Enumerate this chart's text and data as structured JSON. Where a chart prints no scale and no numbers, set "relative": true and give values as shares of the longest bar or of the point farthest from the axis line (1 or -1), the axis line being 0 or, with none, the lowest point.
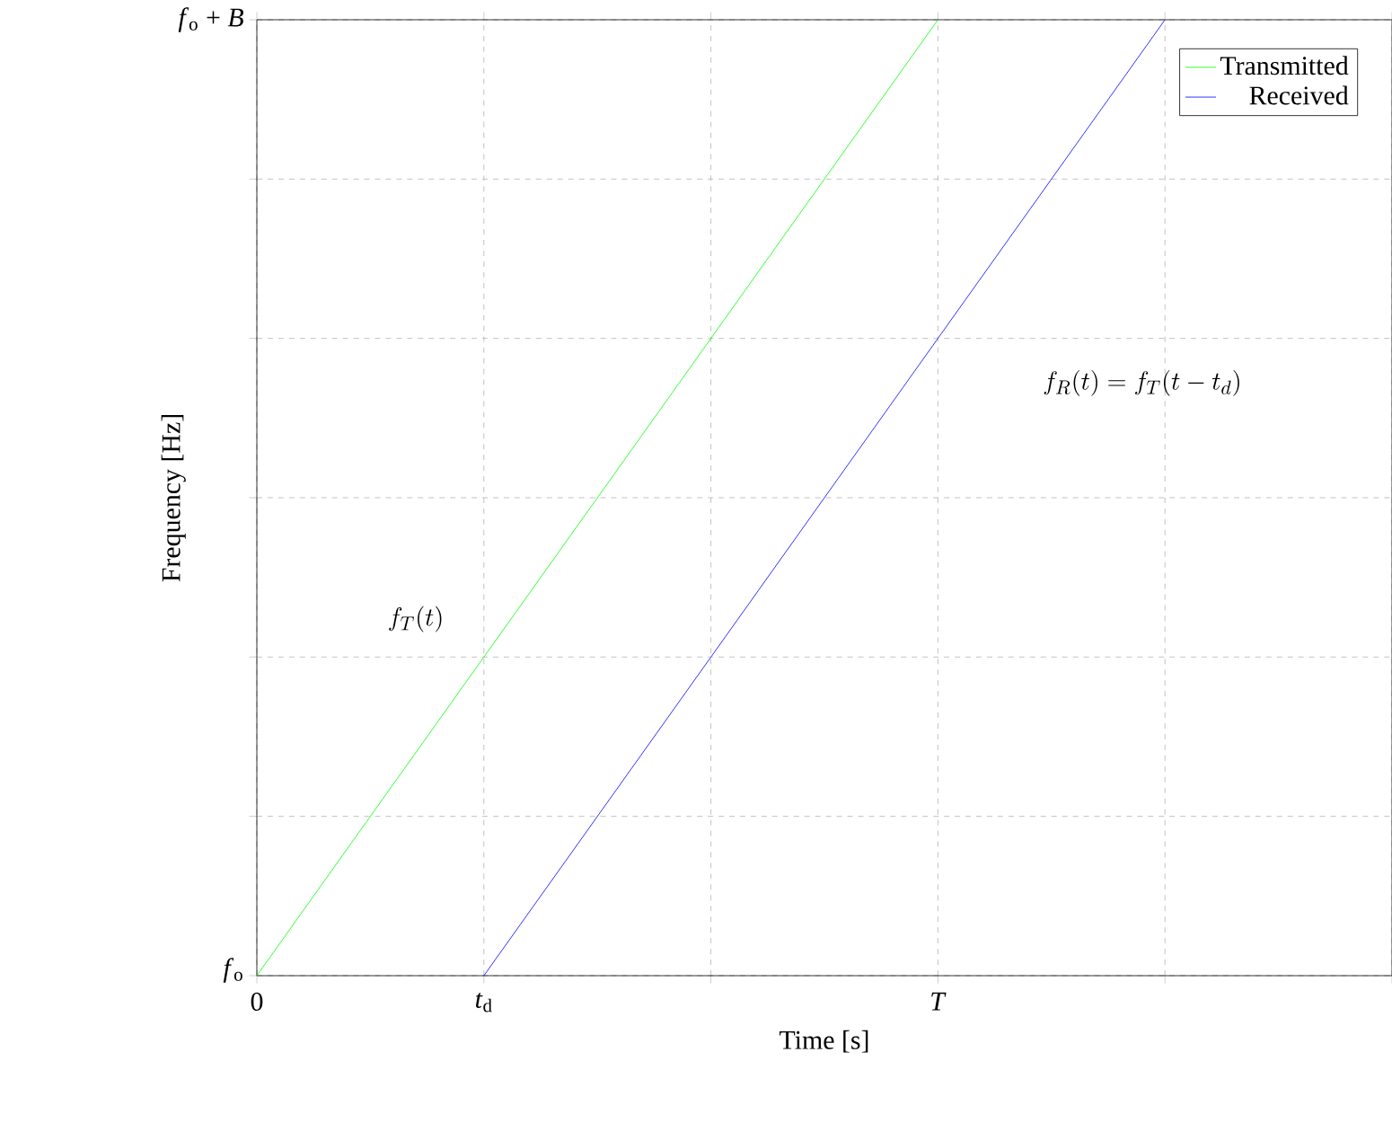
{
  "chart_data": {
    "type": "line",
    "xlabel": "Time [s]",
    "ylabel": "Frequency [Hz]",
    "relative": true,
    "categories": [
      "0",
      "*t*$_{d}$",
      null,
      "*T*",
      null,
      null
    ],
    "series": [
      {
        "name": "Transmitted",
        "color": "#00ff00",
        "values": [
          0,
          0.3333,
          0.6667,
          1,
          null,
          null
        ]
      },
      {
        "name": "Received",
        "color": "#0000ff",
        "values": [
          null,
          0,
          0.3333,
          0.6667,
          1,
          null
        ]
      }
    ],
    "annotations": [
      "*f*$_{o}$",
      "*f*$_{o}$ + *B*",
      "f_T(t)",
      "f_R(t) = f_T(t - t_d)"
    ],
    "grid": true,
    "legend": "top right"
  }
}
